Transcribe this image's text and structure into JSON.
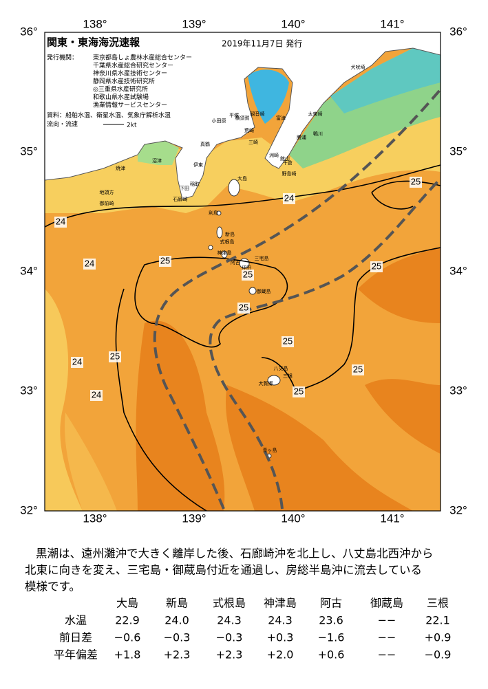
{
  "header": {
    "title": "関東・東海海況速報",
    "date": "2019年11月7日 発行",
    "issuer_label": "発行機関：",
    "issuers": [
      "東京都島しょ農林水産総合センター",
      "千葉県水産総合研究センター",
      "神奈川県水産技術センター",
      "静岡県水産技術研究所",
      "◎三重県水産研究所",
      "和歌山県水産試験場",
      "漁業情報サービスセンター"
    ],
    "sources": "資料：船舶水温、衛星水温、気象庁解析水温",
    "legend_label": "流向・流速",
    "legend_speed": "2kt"
  },
  "map": {
    "lon_labels": [
      "138°",
      "139°",
      "140°",
      "141°"
    ],
    "lat_labels": [
      "36°",
      "35°",
      "34°",
      "33°",
      "32°"
    ],
    "places": [
      "犬吠埼",
      "太東崎",
      "勝浦",
      "鴨川",
      "館山",
      "千倉",
      "野島崎",
      "洲崎",
      "富津",
      "観音崎",
      "横須賀",
      "荒崎",
      "三崎",
      "平塚",
      "小田原",
      "真鶴",
      "伊東",
      "稲取",
      "下田",
      "石廊崎",
      "沼津",
      "焼津",
      "地頭方",
      "御前崎",
      "大島",
      "利島",
      "新島",
      "式根島",
      "神津島",
      "三宅島",
      "阿古",
      "坪田",
      "御蔵島",
      "八丈島",
      "大賀郷",
      "三根",
      "青ヶ島"
    ],
    "contour_labels": [
      "24",
      "24",
      "25",
      "25",
      "24",
      "25",
      "25",
      "25",
      "25",
      "24",
      "25",
      "24",
      "25",
      "25"
    ]
  },
  "summary": [
    "黒潮は、遠州灘沖で大きく離岸した後、石廊崎沖を北上し、八丈島北西沖から",
    "北東に向きを変え、三宅島・御蔵島付近を通過し、房総半島沖に流去している",
    "模様です。"
  ],
  "table": {
    "columns": [
      "大島",
      "新島",
      "式根島",
      "神津島",
      "阿古",
      "御蔵島",
      "三根"
    ],
    "rows": [
      {
        "label": "水温",
        "values": [
          "22.9",
          "24.0",
          "24.3",
          "24.3",
          "23.6",
          "−−",
          "22.1"
        ]
      },
      {
        "label": "前日差",
        "values": [
          "−0.6",
          "−0.3",
          "−0.3",
          "+0.3",
          "−1.6",
          "−−",
          "+0.9"
        ]
      },
      {
        "label": "平年偏差",
        "values": [
          "+1.8",
          "+2.3",
          "+2.3",
          "+2.0",
          "+0.6",
          "−−",
          "−0.9"
        ]
      }
    ]
  }
}
